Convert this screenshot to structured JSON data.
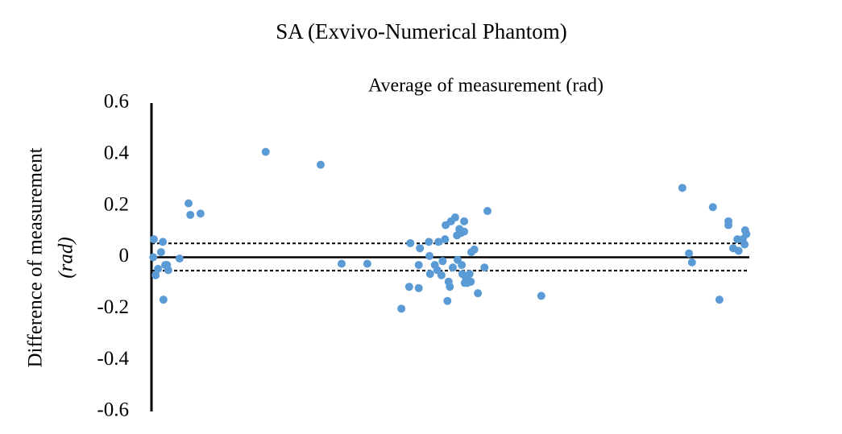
{
  "chart_data": {
    "type": "scatter",
    "title": "SA (Exvivo-Numerical Phantom)",
    "x_label": "Average of measurement (rad)",
    "y_label": [
      "Difference of measurement",
      "(rad)"
    ],
    "color": "#5b9bd5",
    "xlim": [
      0,
      1
    ],
    "ylim": [
      -0.6,
      0.6
    ],
    "yticks": [
      0.6,
      0.4,
      0.2,
      0,
      -0.2,
      -0.4,
      -0.6
    ],
    "hlines": [
      {
        "value": 0,
        "style": "solid"
      },
      {
        "value": 0.054,
        "style": "dashed"
      },
      {
        "value": -0.052,
        "style": "dashed"
      }
    ],
    "x": [
      0.004,
      0.003,
      0.007,
      0.011,
      0.016,
      0.019,
      0.02,
      0.023,
      0.026,
      0.028,
      0.047,
      0.062,
      0.065,
      0.082,
      0.191,
      0.283,
      0.318,
      0.361,
      0.418,
      0.433,
      0.431,
      0.447,
      0.447,
      0.449,
      0.464,
      0.465,
      0.466,
      0.474,
      0.478,
      0.48,
      0.485,
      0.487,
      0.491,
      0.492,
      0.495,
      0.497,
      0.499,
      0.501,
      0.504,
      0.508,
      0.511,
      0.512,
      0.515,
      0.518,
      0.519,
      0.52,
      0.523,
      0.523,
      0.524,
      0.526,
      0.528,
      0.532,
      0.534,
      0.535,
      0.54,
      0.546,
      0.557,
      0.562,
      0.652,
      0.888,
      0.899,
      0.904,
      0.939,
      0.95,
      0.965,
      0.965,
      0.973,
      0.98,
      0.982,
      0.989,
      0.992,
      0.993,
      0.995
    ],
    "values": [
      0.07,
      0.0,
      -0.07,
      -0.045,
      0.02,
      0.06,
      -0.165,
      -0.03,
      -0.03,
      -0.05,
      -0.005,
      0.21,
      0.165,
      0.17,
      0.41,
      0.36,
      -0.025,
      -0.025,
      -0.2,
      0.055,
      -0.115,
      -0.12,
      -0.03,
      0.035,
      0.06,
      0.005,
      -0.065,
      -0.03,
      -0.05,
      0.06,
      -0.07,
      -0.015,
      0.07,
      0.125,
      -0.17,
      -0.095,
      -0.115,
      0.14,
      -0.04,
      0.155,
      0.085,
      -0.01,
      0.11,
      0.095,
      -0.03,
      -0.065,
      0.14,
      0.1,
      -0.1,
      -0.08,
      -0.1,
      -0.065,
      -0.095,
      0.02,
      0.03,
      -0.14,
      -0.04,
      0.18,
      -0.15,
      0.27,
      0.015,
      -0.02,
      0.195,
      -0.165,
      0.14,
      0.125,
      0.035,
      0.07,
      0.025,
      0.07,
      0.05,
      0.105,
      0.09
    ]
  }
}
